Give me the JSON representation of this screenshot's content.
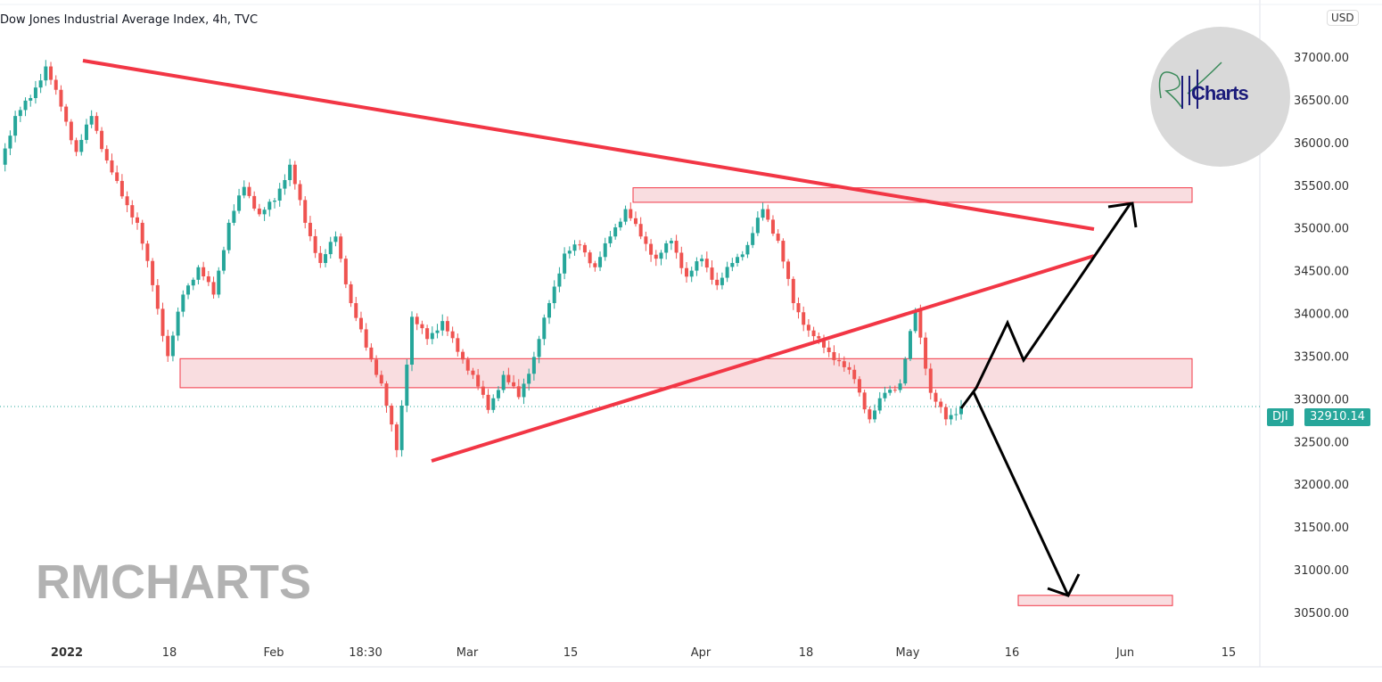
{
  "title": "Dow Jones Industrial Average Index, 4h, TVC",
  "watermark": "RMCHARTS",
  "logo_text": "Charts",
  "currency": "USD",
  "symbol_tag": "DJI",
  "last_price": "32910.14",
  "colors": {
    "up": "#26a69a",
    "down": "#ef5350",
    "trendline": "#f23645",
    "zone_fill": "#f8d7da",
    "zone_border": "#f23645",
    "arrow": "#000000"
  },
  "chart_data": {
    "type": "candlestick",
    "symbol": "DJI",
    "interval": "4h",
    "ylim": [
      30300,
      37200
    ],
    "yticks": [
      37000,
      36500,
      36000,
      35500,
      35000,
      34500,
      34000,
      33500,
      33000,
      32500,
      32000,
      31500,
      31000,
      30500
    ],
    "xticks": [
      "2022",
      "18",
      "Feb",
      "18:30",
      "Mar",
      "15",
      "Apr",
      "18",
      "May",
      "16",
      "Jun",
      "15"
    ],
    "closes": [
      35740,
      36310,
      36520,
      36890,
      36420,
      35890,
      36310,
      35790,
      35370,
      35060,
      34330,
      33500,
      34220,
      34540,
      34220,
      35060,
      35480,
      35160,
      35320,
      35740,
      35060,
      34590,
      34900,
      34120,
      33600,
      33180,
      32400,
      33960,
      33700,
      33910,
      33550,
      33280,
      32870,
      33280,
      33020,
      33490,
      34120,
      34700,
      34800,
      34540,
      34900,
      35220,
      34900,
      34640,
      34850,
      34430,
      34640,
      34330,
      34590,
      34800,
      35220,
      34850,
      34120,
      33800,
      33600,
      33440,
      33230,
      32760,
      33070,
      33180,
      34040,
      33070,
      32760,
      32910
    ],
    "zones": [
      {
        "from": 35300,
        "to": 35470
      },
      {
        "from": 33130,
        "to": 33470
      },
      {
        "from": 30580,
        "to": 30700
      }
    ]
  }
}
